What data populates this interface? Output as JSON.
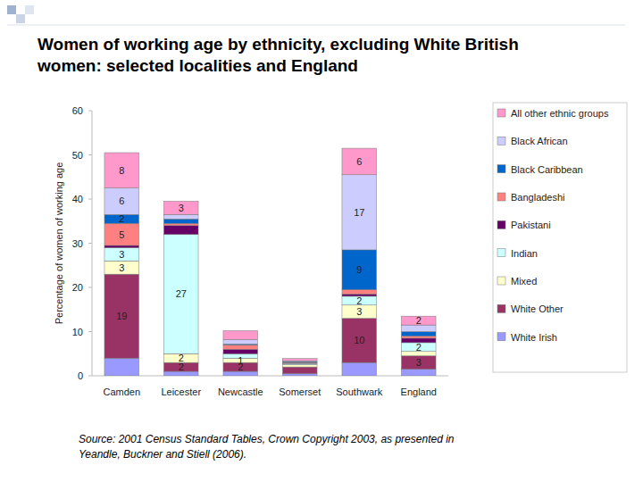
{
  "chart_data": {
    "type": "bar",
    "title": "Women of working age by ethnicity, excluding White British women: selected localities and England",
    "y_label": "Percentage of women of working age",
    "annotations": [
      "Source: 2001 Census Standard Tables, Crown Copyright 2003, as presented in Yeandle, Buckner and Stiell (2006)."
    ],
    "categories": [
      "Camden",
      "Leicester",
      "Newcastle",
      "Somerset",
      "Southwark",
      "England"
    ],
    "stacked": true,
    "data_labels": true,
    "grid": false,
    "legend": "right",
    "ylim": [
      0,
      60
    ],
    "yticks": [
      0,
      10,
      20,
      30,
      40,
      50,
      60
    ],
    "series": [
      {
        "name": "White Irish",
        "color": "#9999ff",
        "values": [
          4,
          1,
          1,
          0.5,
          3,
          1.5
        ],
        "value_labels": [
          null,
          null,
          null,
          null,
          null,
          null
        ]
      },
      {
        "name": "White Other",
        "color": "#993366",
        "values": [
          19,
          2,
          2,
          1.5,
          10,
          3
        ],
        "value_labels": [
          "19",
          "2",
          "2",
          null,
          "10",
          "3"
        ]
      },
      {
        "name": "Mixed",
        "color": "#ffffcc",
        "values": [
          3,
          2,
          1,
          0.5,
          3,
          1
        ],
        "value_labels": [
          "3",
          "2",
          "1",
          null,
          "3",
          null
        ]
      },
      {
        "name": "Indian",
        "color": "#ccffff",
        "values": [
          3,
          27,
          1,
          0.3,
          2,
          2
        ],
        "value_labels": [
          "3",
          "27",
          null,
          null,
          "2",
          "2"
        ]
      },
      {
        "name": "Pakistani",
        "color": "#660066",
        "values": [
          0.5,
          2,
          1,
          0.1,
          0.5,
          1
        ],
        "value_labels": [
          null,
          null,
          null,
          null,
          null,
          null
        ]
      },
      {
        "name": "Bangladeshi",
        "color": "#ff8080",
        "values": [
          5,
          0.5,
          1,
          0.1,
          1,
          0.5
        ],
        "value_labels": [
          "5",
          null,
          null,
          null,
          null,
          null
        ]
      },
      {
        "name": "Black Caribbean",
        "color": "#0066cc",
        "values": [
          2,
          1,
          0.2,
          0.2,
          9,
          1
        ],
        "value_labels": [
          "2",
          null,
          null,
          null,
          "9",
          null
        ]
      },
      {
        "name": "Black African",
        "color": "#ccccff",
        "values": [
          6,
          1,
          1,
          0.2,
          17,
          1.5
        ],
        "value_labels": [
          "6",
          null,
          null,
          null,
          "17",
          null
        ]
      },
      {
        "name": "All other ethnic groups",
        "color": "#ff99cc",
        "values": [
          8,
          3,
          2,
          0.5,
          6,
          2
        ],
        "value_labels": [
          "8",
          "3",
          null,
          null,
          "6",
          "2"
        ]
      }
    ]
  }
}
